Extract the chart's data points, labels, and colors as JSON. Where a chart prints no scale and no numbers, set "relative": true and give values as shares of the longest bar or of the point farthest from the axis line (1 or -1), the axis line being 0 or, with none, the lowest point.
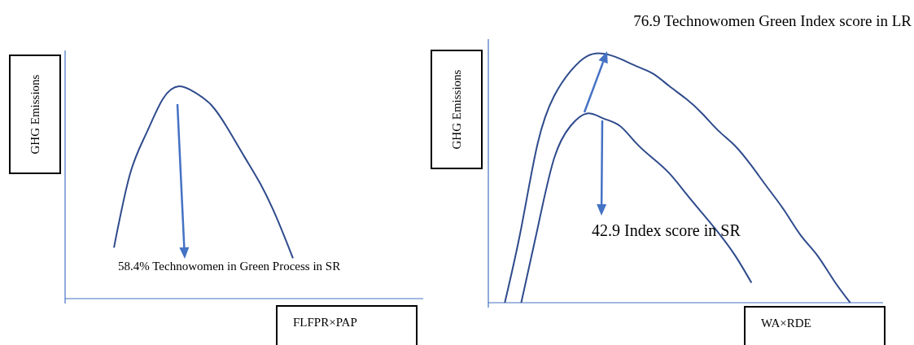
{
  "chart_data": [
    {
      "type": "line",
      "relative": true,
      "xlabel": "FLFPR×PAP",
      "ylabel": "GHG Emissions",
      "marker": "none",
      "line_style": "solid",
      "categories": [
        null,
        null,
        null,
        null,
        null,
        null,
        null,
        null,
        null,
        null,
        null,
        null,
        null,
        null,
        null,
        null,
        null,
        null,
        null,
        null,
        null,
        null,
        null
      ],
      "series": [
        {
          "color": "#2f4b8c",
          "values": [
            null,
            null,
            null,
            0.24,
            0.59,
            0.78,
            0.94,
            1.0,
            0.97,
            0.91,
            0.8,
            0.67,
            0.54,
            0.38,
            0.19,
            null,
            null,
            null,
            null,
            null,
            null,
            null,
            null
          ]
        }
      ],
      "annotations": [
        "58.4% Technowomen in Green Process in SR"
      ]
    },
    {
      "type": "line",
      "relative": true,
      "xlabel": "WA×RDE",
      "ylabel": "GHG Emissions",
      "marker": "none",
      "line_style": "solid",
      "categories": [
        null,
        null,
        null,
        null,
        null,
        null,
        null,
        null,
        null,
        null,
        null,
        null,
        null,
        null,
        null,
        null,
        null,
        null,
        null,
        null,
        null,
        null,
        null,
        null,
        null
      ],
      "series": [
        {
          "color": "#2f4b8c",
          "values": [
            null,
            0.0,
            0.3,
            0.64,
            0.83,
            0.93,
            0.99,
            1.0,
            0.98,
            0.95,
            0.92,
            0.87,
            0.82,
            0.76,
            0.69,
            0.63,
            0.55,
            0.46,
            0.37,
            0.27,
            0.19,
            0.09,
            0.0,
            null,
            null
          ]
        },
        {
          "color": "#2f4b8c",
          "values": [
            null,
            null,
            0.0,
            0.3,
            0.58,
            0.71,
            0.76,
            0.74,
            0.71,
            0.64,
            0.58,
            0.52,
            0.44,
            0.36,
            0.28,
            0.19,
            0.08,
            null,
            null,
            null,
            null,
            null,
            null,
            null,
            null
          ]
        }
      ],
      "annotations": [
        "76.9 Technowomen Green Index score in LR",
        "42.9 Index score in SR"
      ]
    }
  ]
}
